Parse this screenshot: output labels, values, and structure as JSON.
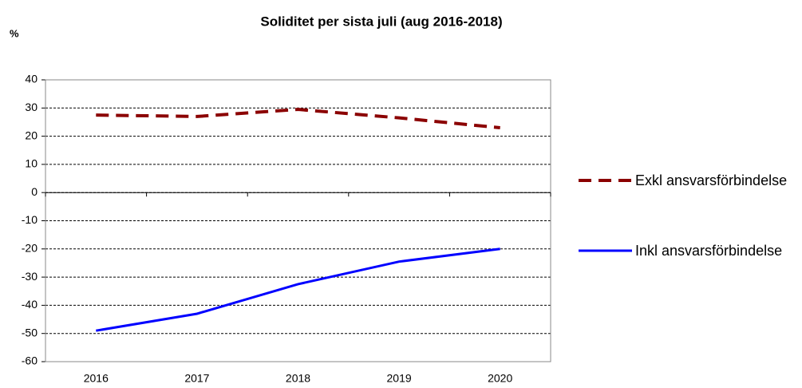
{
  "chart_data": {
    "type": "line",
    "title": "Soliditet per sista juli (aug 2016-2018)",
    "y_label": "%",
    "categories": [
      "2016",
      "2017",
      "2018",
      "2019",
      "2020"
    ],
    "series": [
      {
        "name": "Exkl ansvarsförbindelse",
        "color": "#8b0000",
        "dashed": true,
        "values": [
          27.5,
          27,
          29.5,
          26.5,
          23
        ]
      },
      {
        "name": "Inkl ansvarsförbindelse",
        "color": "#0000ff",
        "dashed": false,
        "values": [
          -49,
          -43,
          -32.5,
          -24.5,
          -20
        ]
      }
    ],
    "ylim": [
      -60,
      40
    ],
    "yticks": [
      40,
      30,
      20,
      10,
      0,
      -10,
      -20,
      -30,
      -40,
      -50,
      -60
    ],
    "grid": true,
    "legend": "right"
  }
}
